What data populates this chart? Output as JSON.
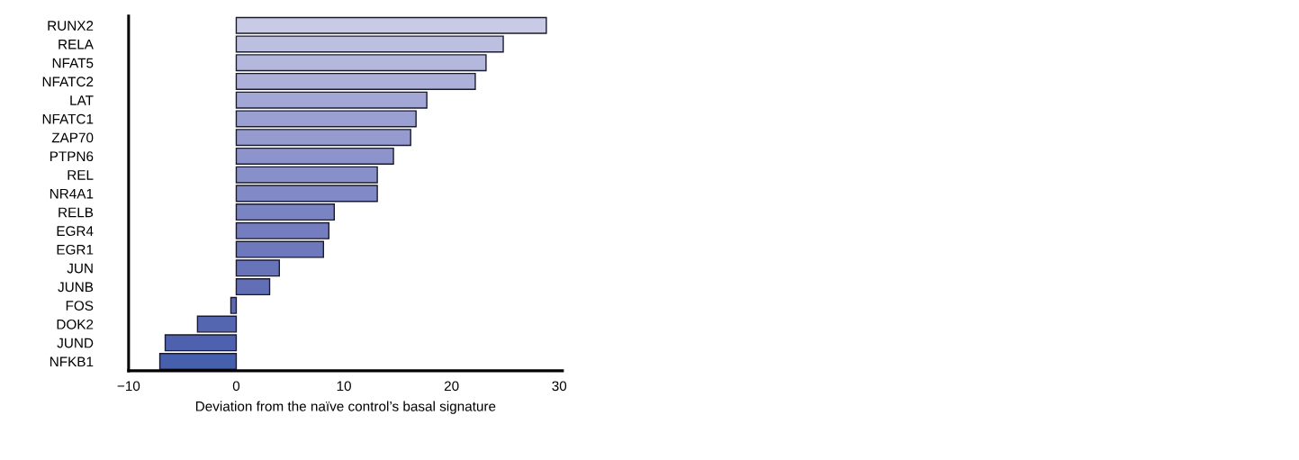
{
  "chart_data": {
    "type": "bar",
    "orientation": "horizontal",
    "xlabel": "Deviation from the naïve control’s basal signature",
    "categories": [
      "RUNX2",
      "RELA",
      "NFAT5",
      "NFATC2",
      "LAT",
      "NFATC1",
      "ZAP70",
      "PTPN6",
      "REL",
      "NR4A1",
      "RELB",
      "EGR4",
      "EGR1",
      "JUN",
      "JUNB",
      "FOS",
      "DOK2",
      "JUND",
      "NFKB1"
    ],
    "values": [
      28.8,
      24.8,
      23.2,
      22.2,
      17.7,
      16.7,
      16.2,
      14.6,
      13.1,
      13.1,
      9.1,
      8.6,
      8.1,
      4.0,
      3.1,
      -0.5,
      -3.6,
      -6.6,
      -7.1
    ],
    "colors": [
      "#c9cbe6",
      "#bcbfe0",
      "#b4b8dd",
      "#adb1da",
      "#a2a7d5",
      "#9aa0d1",
      "#959bcf",
      "#8d94cb",
      "#8890c9",
      "#8189c6",
      "#7b84c3",
      "#737dbf",
      "#6e79bd",
      "#6874ba",
      "#626fb7",
      "#5c6ab4",
      "#5566b1",
      "#4e61ae",
      "#4660ad"
    ],
    "xlim": [
      -10,
      30.3
    ],
    "xticks": [
      -10,
      0,
      10,
      20,
      30
    ],
    "grid": false,
    "legend": false
  }
}
